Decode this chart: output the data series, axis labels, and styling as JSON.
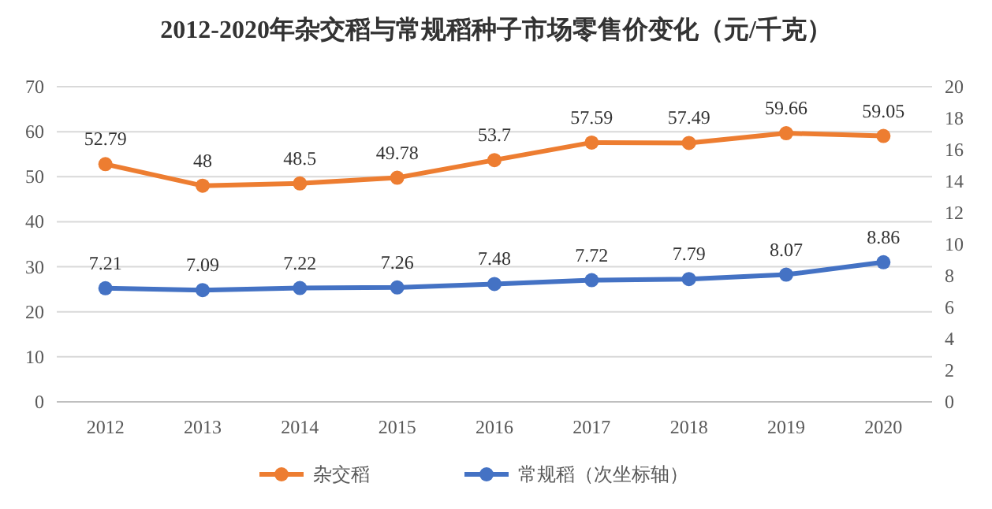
{
  "chart_data": {
    "type": "line",
    "title": "2012-2020年杂交稻与常规稻种子市场零售价变化（元/千克）",
    "categories": [
      "2012",
      "2013",
      "2014",
      "2015",
      "2016",
      "2017",
      "2018",
      "2019",
      "2020"
    ],
    "series": [
      {
        "name": "杂交稻",
        "color": "#ed7d31",
        "values": [
          52.79,
          48,
          48.5,
          49.78,
          53.7,
          57.59,
          57.49,
          59.66,
          59.05
        ]
      },
      {
        "name": "常规稻（次坐标轴）",
        "color": "#4472c4",
        "values": [
          7.21,
          7.09,
          7.22,
          7.26,
          7.48,
          7.72,
          7.79,
          8.07,
          8.86
        ],
        "axis": "y2"
      }
    ],
    "ylim": [
      0,
      70
    ],
    "yticks": [
      0,
      10,
      20,
      30,
      40,
      50,
      60,
      70
    ],
    "y2lim": [
      0,
      20
    ],
    "y2ticks": [
      0,
      2,
      4,
      6,
      8,
      10,
      12,
      14,
      16,
      18,
      20
    ],
    "grid": "y",
    "legend": "bottom",
    "marker": "circle",
    "line_style": "solid",
    "data_labels": true
  }
}
